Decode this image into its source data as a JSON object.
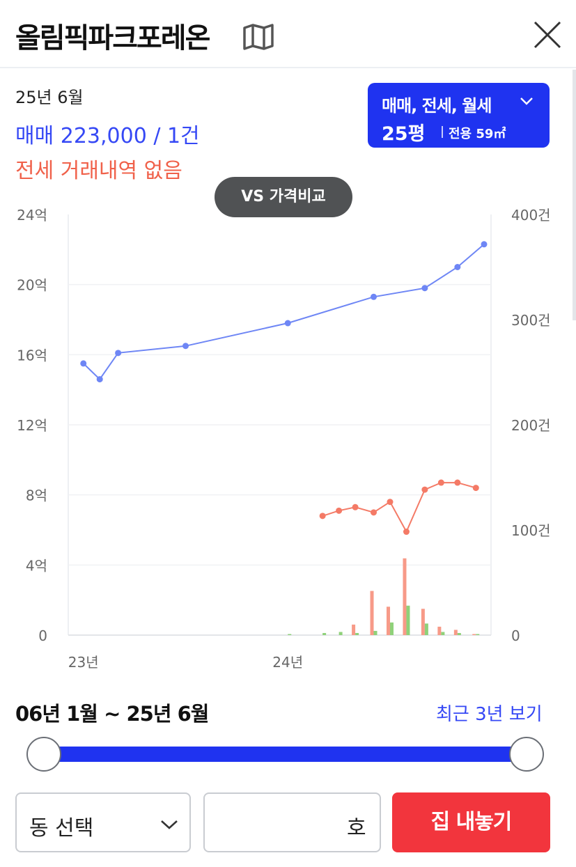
{
  "header": {
    "title": "올림픽파크포레온",
    "map_icon": "map-icon",
    "close_icon": "close-icon"
  },
  "summary": {
    "date": "25년 6월",
    "sale": "매매 223,000 / 1건",
    "jeonse": "전세 거래내역 없음"
  },
  "filter": {
    "types": "매매, 전세, 월세",
    "size": "25평",
    "area": "전용 59㎡"
  },
  "compare_button": "VS 가격비교",
  "colors": {
    "accent_blue": "#1f33f0",
    "sale_line": "#6e86f5",
    "jeonse_line": "#f47a66",
    "sale_bar": "#8fd17a",
    "jeonse_bar": "#f79a88",
    "cta_red": "#f2353d"
  },
  "chart_data": {
    "type": "line",
    "left_axis": {
      "ticks": [
        "24억",
        "20억",
        "16억",
        "12억",
        "8억",
        "4억",
        "0"
      ],
      "range": [
        0,
        24
      ]
    },
    "right_axis": {
      "ticks": [
        "400건",
        "300건",
        "200건",
        "100건",
        "0"
      ],
      "range": [
        0,
        400
      ]
    },
    "x_ticks": [
      {
        "label": "23년",
        "x": 2023.0
      },
      {
        "label": "24년",
        "x": 2024.0
      }
    ],
    "x_range": [
      2022.96,
      2024.96
    ],
    "grid": true,
    "series": [
      {
        "kind": "line",
        "color": "#6e86f5",
        "points": [
          [
            2023.0,
            15.5
          ],
          [
            2023.08,
            14.6
          ],
          [
            2023.17,
            16.1
          ],
          [
            2023.5,
            16.5
          ],
          [
            2024.0,
            17.8
          ],
          [
            2024.42,
            19.3
          ],
          [
            2024.67,
            19.8
          ],
          [
            2024.83,
            21.0
          ],
          [
            2024.96,
            22.3
          ]
        ]
      },
      {
        "kind": "line",
        "color": "#f47a66",
        "points": [
          [
            2024.17,
            6.8
          ],
          [
            2024.25,
            7.1
          ],
          [
            2024.33,
            7.3
          ],
          [
            2024.42,
            7.0
          ],
          [
            2024.5,
            7.6
          ],
          [
            2024.58,
            5.9
          ],
          [
            2024.67,
            8.3
          ],
          [
            2024.75,
            8.7
          ],
          [
            2024.83,
            8.7
          ],
          [
            2024.92,
            8.4
          ]
        ]
      },
      {
        "kind": "bar",
        "color": "#f79a88",
        "points": [
          [
            2024.33,
            10
          ],
          [
            2024.42,
            42
          ],
          [
            2024.5,
            27
          ],
          [
            2024.58,
            73
          ],
          [
            2024.67,
            25
          ],
          [
            2024.75,
            8
          ],
          [
            2024.83,
            5
          ],
          [
            2024.92,
            1
          ]
        ]
      },
      {
        "kind": "bar",
        "color": "#8fd17a",
        "points": [
          [
            2024.0,
            1
          ],
          [
            2024.17,
            2
          ],
          [
            2024.25,
            3
          ],
          [
            2024.33,
            2
          ],
          [
            2024.42,
            4
          ],
          [
            2024.5,
            12
          ],
          [
            2024.58,
            28
          ],
          [
            2024.67,
            11
          ],
          [
            2024.75,
            3
          ],
          [
            2024.83,
            2
          ],
          [
            2024.92,
            1
          ]
        ]
      }
    ]
  },
  "period": {
    "label": "06년 1월 ~ 25년 6월",
    "recent_link": "최근 3년 보기"
  },
  "slider": {
    "start": 0,
    "end": 1
  },
  "bottom": {
    "dong_select": "동 선택",
    "ho_value": "",
    "ho_unit": "호",
    "list_button": "집 내놓기"
  }
}
